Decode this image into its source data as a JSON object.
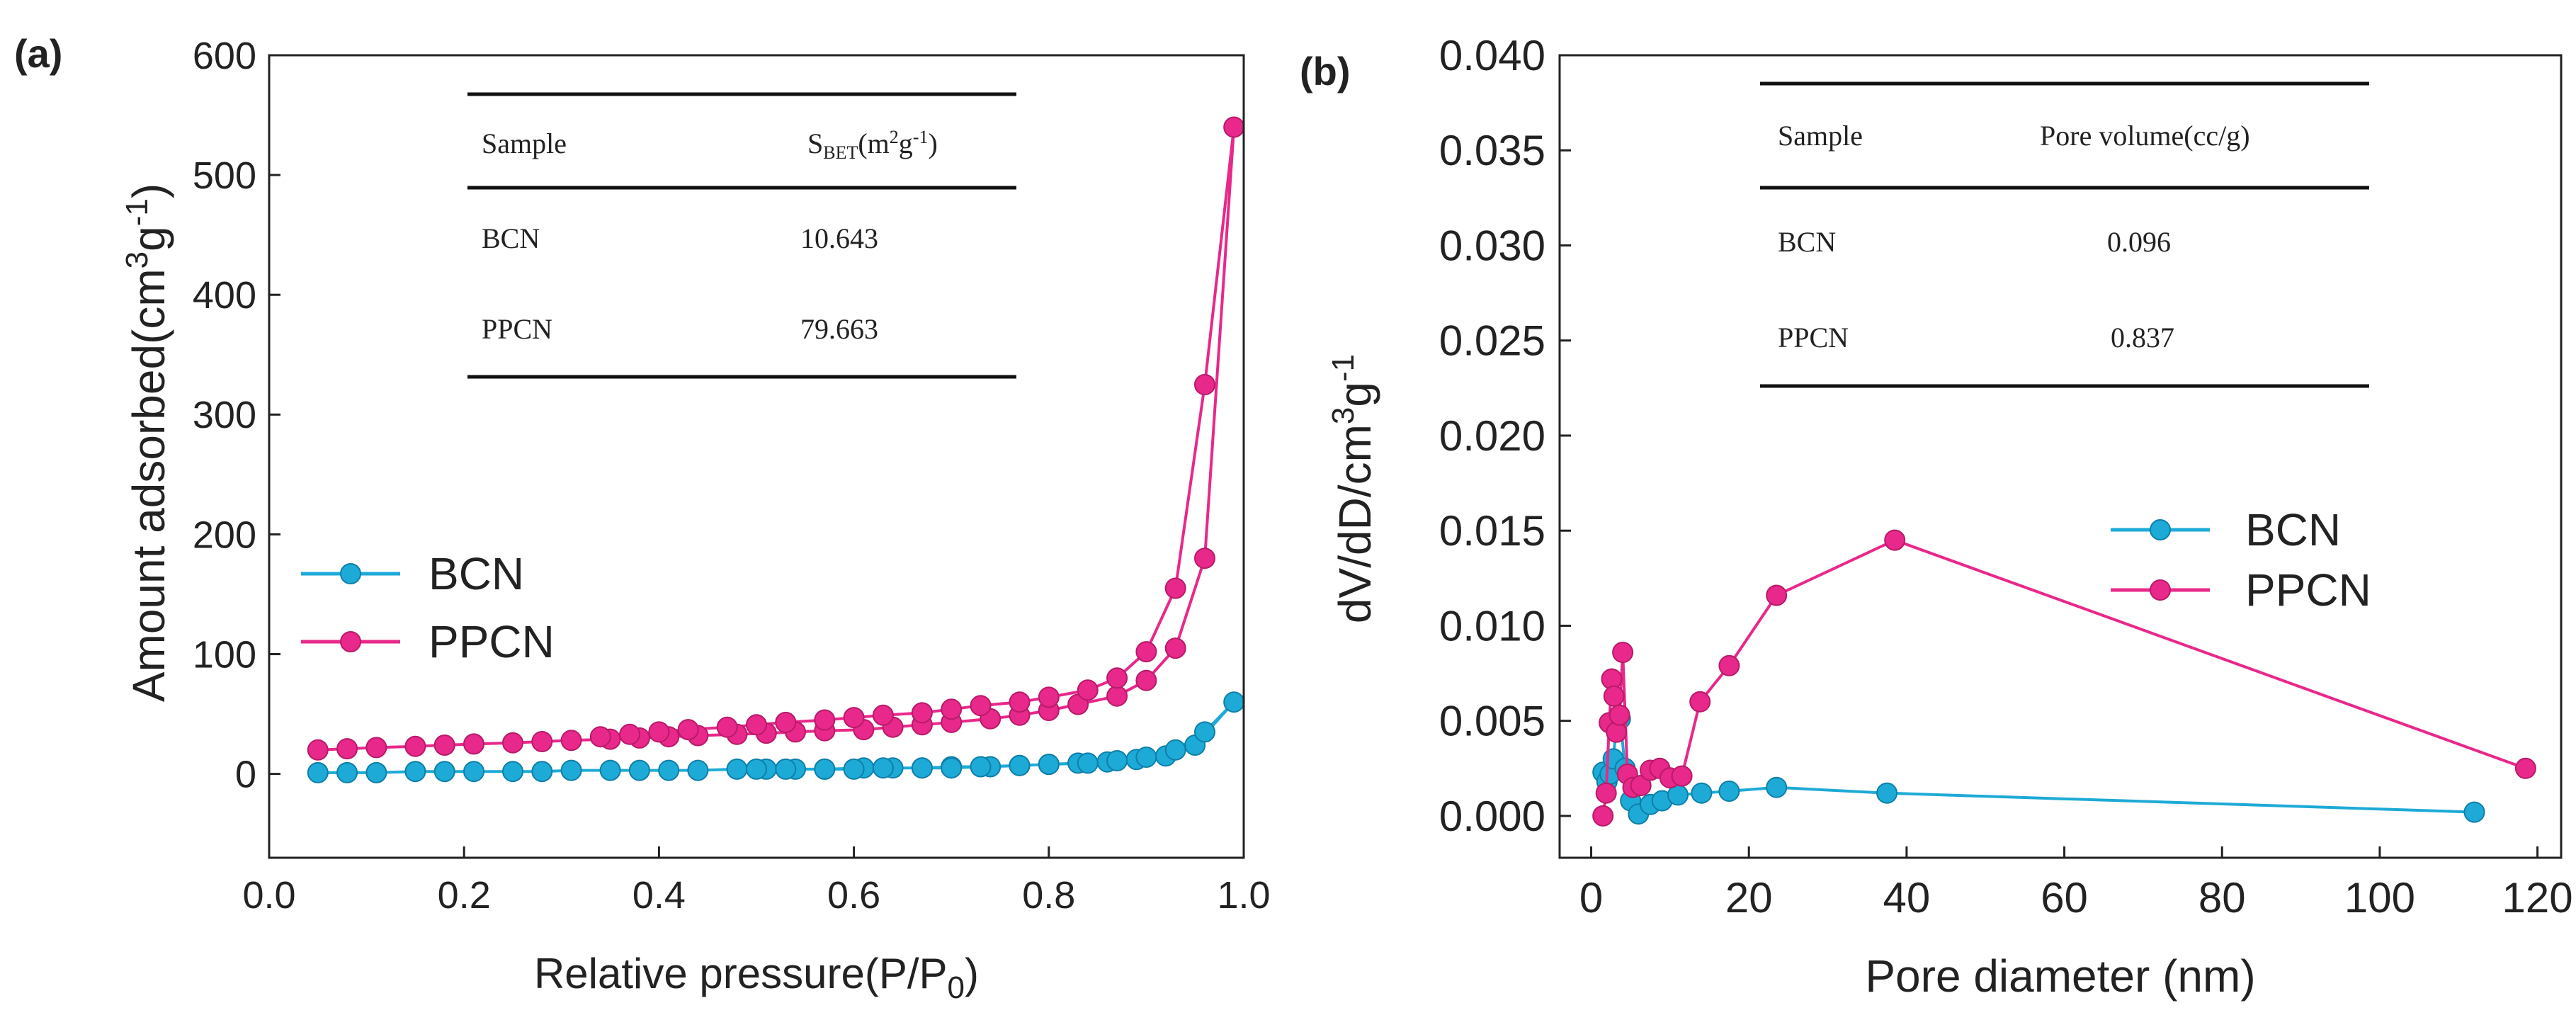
{
  "chart_data": [
    {
      "type": "line",
      "panel_label": "(a)",
      "xlabel_main": "Relative pressure(P/P",
      "xlabel_sub": "0",
      "xlabel_end": ")",
      "ylabel_main": "Amount adsorbed(cm",
      "ylabel_sup1": "3",
      "ylabel_mid": "g",
      "ylabel_sup2": "-1",
      "ylabel_end": ")",
      "xlim": [
        0.0,
        1.0
      ],
      "ylim": [
        -70,
        600
      ],
      "xticks": [
        0.0,
        0.2,
        0.4,
        0.6,
        0.8,
        1.0
      ],
      "xtick_labels": [
        "0.0",
        "0.2",
        "0.4",
        "0.6",
        "0.8",
        "1.0"
      ],
      "yticks": [
        0,
        100,
        200,
        300,
        400,
        500,
        600
      ],
      "ytick_labels": [
        "0",
        "100",
        "200",
        "300",
        "400",
        "500",
        "600"
      ],
      "legend_position": "center-left",
      "series": [
        {
          "name": "BCN",
          "color": "#1eaad6",
          "x": [
            0.05,
            0.08,
            0.11,
            0.15,
            0.18,
            0.21,
            0.25,
            0.28,
            0.31,
            0.35,
            0.38,
            0.41,
            0.44,
            0.48,
            0.51,
            0.54,
            0.57,
            0.61,
            0.64,
            0.67,
            0.7,
            0.74,
            0.77,
            0.8,
            0.83,
            0.86,
            0.89,
            0.92,
            0.95,
            0.99,
            0.96,
            0.93,
            0.9,
            0.87,
            0.84,
            0.8,
            0.77,
            0.73,
            0.7,
            0.67,
            0.63,
            0.6,
            0.57,
            0.53,
            0.5
          ],
          "y": [
            1,
            1,
            1,
            2,
            2,
            2,
            2,
            2,
            3,
            3,
            3,
            3,
            3,
            4,
            4,
            4,
            4,
            5,
            5,
            5,
            6,
            6,
            7,
            8,
            9,
            10,
            12,
            15,
            24,
            60,
            35,
            20,
            14,
            11,
            9,
            8,
            7,
            6,
            5,
            5,
            5,
            4,
            4,
            4,
            4
          ]
        },
        {
          "name": "PPCN",
          "color": "#e8288a",
          "x": [
            0.05,
            0.08,
            0.11,
            0.15,
            0.18,
            0.21,
            0.25,
            0.28,
            0.31,
            0.35,
            0.38,
            0.41,
            0.44,
            0.48,
            0.51,
            0.54,
            0.57,
            0.61,
            0.64,
            0.67,
            0.7,
            0.74,
            0.77,
            0.8,
            0.83,
            0.87,
            0.9,
            0.93,
            0.96,
            0.99,
            0.96,
            0.93,
            0.9,
            0.87,
            0.84,
            0.8,
            0.77,
            0.73,
            0.7,
            0.67,
            0.63,
            0.6,
            0.57,
            0.53,
            0.5,
            0.47,
            0.43,
            0.4,
            0.37,
            0.34
          ],
          "y": [
            20,
            21,
            22,
            23,
            24,
            25,
            26,
            27,
            28,
            29,
            30,
            31,
            32,
            33,
            34,
            35,
            36,
            37,
            39,
            41,
            43,
            46,
            49,
            53,
            58,
            65,
            78,
            105,
            180,
            540,
            325,
            155,
            102,
            80,
            70,
            64,
            60,
            57,
            54,
            51,
            49,
            47,
            45,
            43,
            41,
            39,
            37,
            35,
            33,
            31
          ]
        }
      ],
      "inset_table": {
        "headers": [
          "Sample",
          "S",
          "BET",
          "(m",
          "2",
          "g",
          "-1",
          ")"
        ],
        "rows": [
          [
            "BCN",
            "10.643"
          ],
          [
            "PPCN",
            "79.663"
          ]
        ]
      }
    },
    {
      "type": "line",
      "panel_label": "(b)",
      "xlabel": "Pore diameter (nm)",
      "ylabel_main": "dV/dD/cm",
      "ylabel_sup1": "3",
      "ylabel_mid": "g",
      "ylabel_sup2": "-1",
      "xlim": [
        -4,
        123
      ],
      "ylim": [
        -0.0022,
        0.04
      ],
      "xticks": [
        0,
        20,
        40,
        60,
        80,
        100,
        120
      ],
      "xtick_labels": [
        "0",
        "20",
        "40",
        "60",
        "80",
        "100",
        "120"
      ],
      "yticks": [
        0.0,
        0.005,
        0.01,
        0.015,
        0.02,
        0.025,
        0.03,
        0.035,
        0.04
      ],
      "ytick_labels": [
        "0.000",
        "0.005",
        "0.010",
        "0.015",
        "0.020",
        "0.025",
        "0.030",
        "0.035",
        "0.040"
      ],
      "legend_position": "center-right",
      "series": [
        {
          "name": "BCN",
          "color": "#1eaad6",
          "x": [
            1.5,
            2.0,
            2.4,
            2.8,
            3.2,
            3.7,
            4.3,
            5.0,
            6.0,
            7.5,
            9.0,
            11.0,
            14.0,
            17.5,
            23.5,
            37.5,
            112.0
          ],
          "y": [
            0.0023,
            0.0018,
            0.0022,
            0.003,
            0.0048,
            0.0051,
            0.0025,
            0.0008,
            0.0001,
            0.0006,
            0.0008,
            0.0011,
            0.0012,
            0.0013,
            0.0015,
            0.0012,
            0.0002
          ]
        },
        {
          "name": "PPCN",
          "color": "#e8288a",
          "x": [
            1.5,
            1.9,
            2.3,
            2.6,
            2.9,
            3.2,
            3.6,
            4.0,
            4.6,
            5.3,
            6.3,
            7.5,
            8.7,
            10.0,
            11.5,
            13.8,
            17.5,
            23.5,
            38.5,
            118.5
          ],
          "y": [
            0.0,
            0.0012,
            0.0049,
            0.0072,
            0.0063,
            0.0044,
            0.0053,
            0.0086,
            0.0022,
            0.0015,
            0.0016,
            0.0024,
            0.0025,
            0.002,
            0.0021,
            0.006,
            0.0079,
            0.0116,
            0.0145,
            0.0025
          ]
        }
      ],
      "inset_table": {
        "headers": [
          "Sample",
          "Pore volume(cc/g)"
        ],
        "rows": [
          [
            "BCN",
            "0.096"
          ],
          [
            "PPCN",
            "0.837"
          ]
        ]
      }
    }
  ]
}
